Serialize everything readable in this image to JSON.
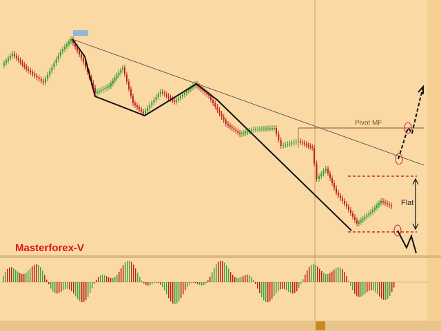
{
  "annotations": {
    "pivot": "Pivot MF",
    "flat": "Flat",
    "brand": "Masterforex-V"
  }
}
